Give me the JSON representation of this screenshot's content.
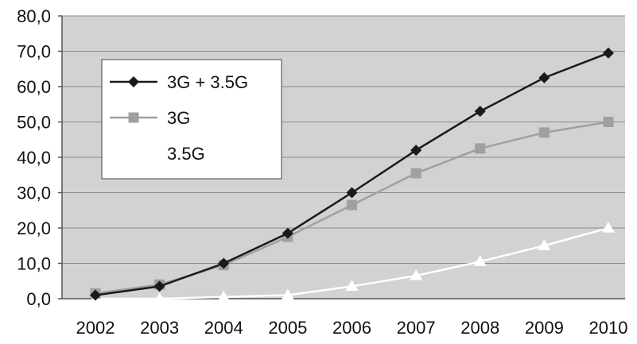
{
  "chart_data": {
    "type": "line",
    "categories": [
      "2002",
      "2003",
      "2004",
      "2005",
      "2006",
      "2007",
      "2008",
      "2009",
      "2010"
    ],
    "ylim": [
      0,
      80
    ],
    "yticks": [
      "0,0",
      "10,0",
      "20,0",
      "30,0",
      "40,0",
      "50,0",
      "60,0",
      "70,0",
      "80,0"
    ],
    "grid": true,
    "legend_position": "top-left",
    "series": [
      {
        "name": "3G + 3.5G",
        "values": [
          1.0,
          3.5,
          10.0,
          18.5,
          30.0,
          42.0,
          53.0,
          62.5,
          69.5
        ],
        "color": "#1a1a1a",
        "marker": "diamond"
      },
      {
        "name": "3G",
        "values": [
          1.5,
          4.0,
          9.5,
          17.5,
          26.5,
          35.5,
          42.5,
          47.0,
          50.0
        ],
        "color": "#a0a0a0",
        "marker": "square"
      },
      {
        "name": "3.5G",
        "values": [
          0.0,
          0.0,
          0.5,
          1.0,
          3.5,
          6.5,
          10.5,
          15.0,
          20.0
        ],
        "color": "#ffffff",
        "marker": "triangle"
      }
    ]
  }
}
